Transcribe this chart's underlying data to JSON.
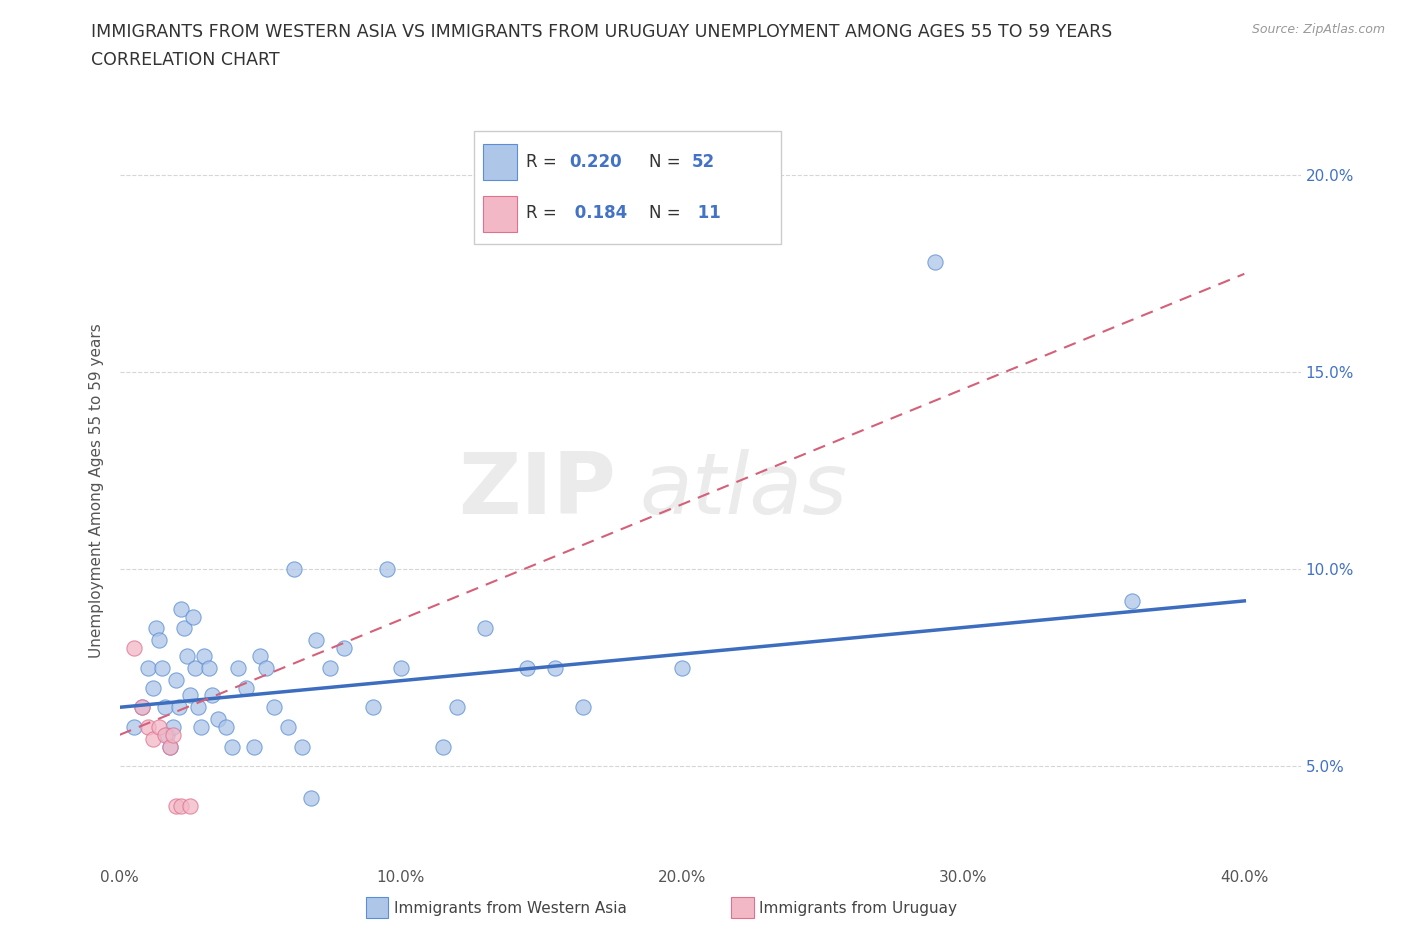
{
  "title_line1": "IMMIGRANTS FROM WESTERN ASIA VS IMMIGRANTS FROM URUGUAY UNEMPLOYMENT AMONG AGES 55 TO 59 YEARS",
  "title_line2": "CORRELATION CHART",
  "source_text": "Source: ZipAtlas.com",
  "ylabel": "Unemployment Among Ages 55 to 59 years",
  "xlabel_ticks": [
    "0.0%",
    "10.0%",
    "20.0%",
    "30.0%",
    "40.0%"
  ],
  "ylabel_ticks_right": [
    "5.0%",
    "10.0%",
    "15.0%",
    "20.0%"
  ],
  "xlim": [
    0.0,
    0.42
  ],
  "ylim": [
    0.025,
    0.215
  ],
  "R_blue": 0.22,
  "N_blue": 52,
  "R_pink": 0.184,
  "N_pink": 11,
  "blue_color": "#aec6e8",
  "blue_edge_color": "#5b8ed6",
  "pink_color": "#f2b8c6",
  "pink_edge_color": "#e07090",
  "blue_line_color": "#3d6dbf",
  "pink_line_color": "#d4607a",
  "legend_label_blue": "Immigrants from Western Asia",
  "legend_label_pink": "Immigrants from Uruguay",
  "watermark_zip": "ZIP",
  "watermark_atlas": "atlas",
  "blue_scatter_x": [
    0.005,
    0.008,
    0.01,
    0.012,
    0.013,
    0.014,
    0.015,
    0.016,
    0.017,
    0.018,
    0.019,
    0.02,
    0.021,
    0.022,
    0.023,
    0.024,
    0.025,
    0.026,
    0.027,
    0.028,
    0.029,
    0.03,
    0.032,
    0.033,
    0.035,
    0.038,
    0.04,
    0.042,
    0.045,
    0.048,
    0.05,
    0.052,
    0.055,
    0.06,
    0.062,
    0.065,
    0.068,
    0.07,
    0.075,
    0.08,
    0.09,
    0.095,
    0.1,
    0.115,
    0.12,
    0.13,
    0.145,
    0.155,
    0.165,
    0.2,
    0.29,
    0.36
  ],
  "blue_scatter_y": [
    0.06,
    0.065,
    0.075,
    0.07,
    0.085,
    0.082,
    0.075,
    0.065,
    0.058,
    0.055,
    0.06,
    0.072,
    0.065,
    0.09,
    0.085,
    0.078,
    0.068,
    0.088,
    0.075,
    0.065,
    0.06,
    0.078,
    0.075,
    0.068,
    0.062,
    0.06,
    0.055,
    0.075,
    0.07,
    0.055,
    0.078,
    0.075,
    0.065,
    0.06,
    0.1,
    0.055,
    0.042,
    0.082,
    0.075,
    0.08,
    0.065,
    0.1,
    0.075,
    0.055,
    0.065,
    0.085,
    0.075,
    0.075,
    0.065,
    0.075,
    0.178,
    0.092
  ],
  "pink_scatter_x": [
    0.005,
    0.008,
    0.01,
    0.012,
    0.014,
    0.016,
    0.018,
    0.019,
    0.02,
    0.022,
    0.025
  ],
  "pink_scatter_y": [
    0.08,
    0.065,
    0.06,
    0.057,
    0.06,
    0.058,
    0.055,
    0.058,
    0.04,
    0.04,
    0.04
  ],
  "blue_trend_x0": 0.0,
  "blue_trend_x1": 0.4,
  "blue_trend_y0": 0.065,
  "blue_trend_y1": 0.092,
  "pink_trend_x0": 0.0,
  "pink_trend_x1": 0.4,
  "pink_trend_y0": 0.058,
  "pink_trend_y1": 0.175,
  "ytick_vals": [
    0.05,
    0.1,
    0.15,
    0.2
  ],
  "xtick_vals": [
    0.0,
    0.1,
    0.2,
    0.3,
    0.4
  ]
}
